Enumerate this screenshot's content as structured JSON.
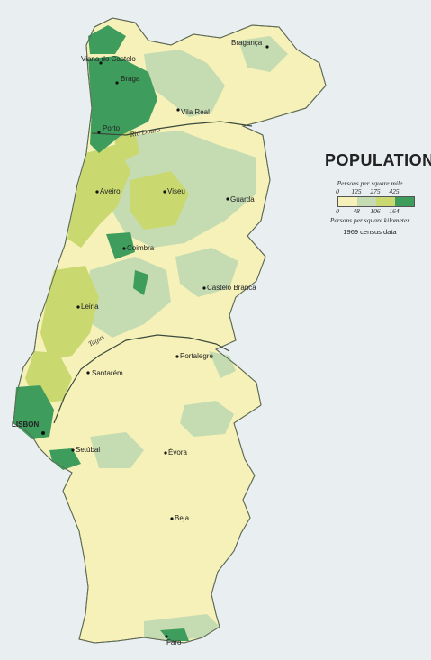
{
  "legend": {
    "title": "POPULATION",
    "mile_label": "Persons per square mile",
    "mile_ticks": [
      "0",
      "125",
      "275",
      "425"
    ],
    "km_ticks": [
      "0",
      "48",
      "106",
      "164"
    ],
    "km_label": "Persons per square kilometer",
    "note": "1969 census data",
    "classes": [
      {
        "color": "#f6f1b8"
      },
      {
        "color": "#c5dcb3"
      },
      {
        "color": "#c9d86f"
      },
      {
        "color": "#3e9c5c"
      }
    ]
  },
  "cities": {
    "braganca": "Bragança",
    "viana": "Viana do Castelo",
    "braga": "Braga",
    "vila_real": "Vila Real",
    "porto": "Porto",
    "aveiro": "Aveiro",
    "viseu": "Viseu",
    "guarda": "Guarda",
    "coimbra": "Coimbra",
    "castelo_branco": "Castelo Branca",
    "leiria": "Leiria",
    "portalegre": "Portalegre",
    "santarem": "Santarém",
    "lisbon": "LISBON",
    "setubal": "Setúbal",
    "evora": "Évora",
    "beja": "Beja",
    "faro": "Faro"
  },
  "rivers": {
    "douro": "Rio Douro",
    "tagus": "Tagus"
  }
}
